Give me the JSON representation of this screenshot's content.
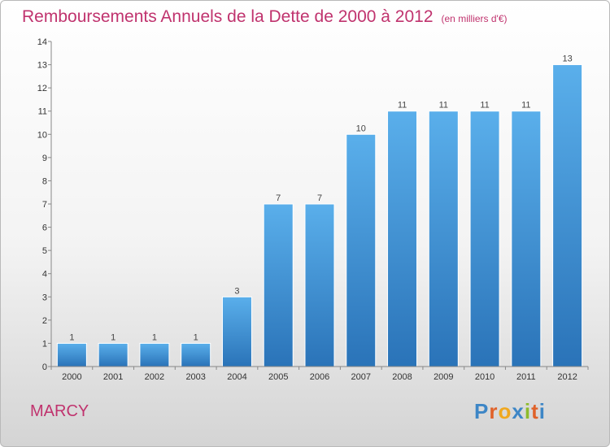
{
  "chart_data": {
    "type": "bar",
    "title": "Remboursements Annuels de la Dette de 2000 à 2012",
    "subtitle": "(en milliers d'€)",
    "categories": [
      "2000",
      "2001",
      "2002",
      "2003",
      "2004",
      "2005",
      "2006",
      "2007",
      "2008",
      "2009",
      "2010",
      "2011",
      "2012"
    ],
    "values": [
      1,
      1,
      1,
      1,
      3,
      7,
      7,
      10,
      11,
      11,
      11,
      11,
      13
    ],
    "xlabel": "",
    "ylabel": "",
    "ylim": [
      0,
      14
    ],
    "yticks": [
      0,
      1,
      2,
      3,
      4,
      5,
      6,
      7,
      8,
      9,
      10,
      11,
      12,
      13,
      14
    ],
    "grid": false,
    "bar_color": "#4a9fdc"
  },
  "footer": {
    "city": "MARCY",
    "logo_letters": [
      "P",
      "r",
      "o",
      "x",
      "i",
      "t",
      "i"
    ],
    "logo_colors": [
      "#3d86c6",
      "#e0622a",
      "#f0a81f",
      "#3d86c6",
      "#8dbb2b",
      "#e0622a",
      "#3d86c6"
    ]
  }
}
